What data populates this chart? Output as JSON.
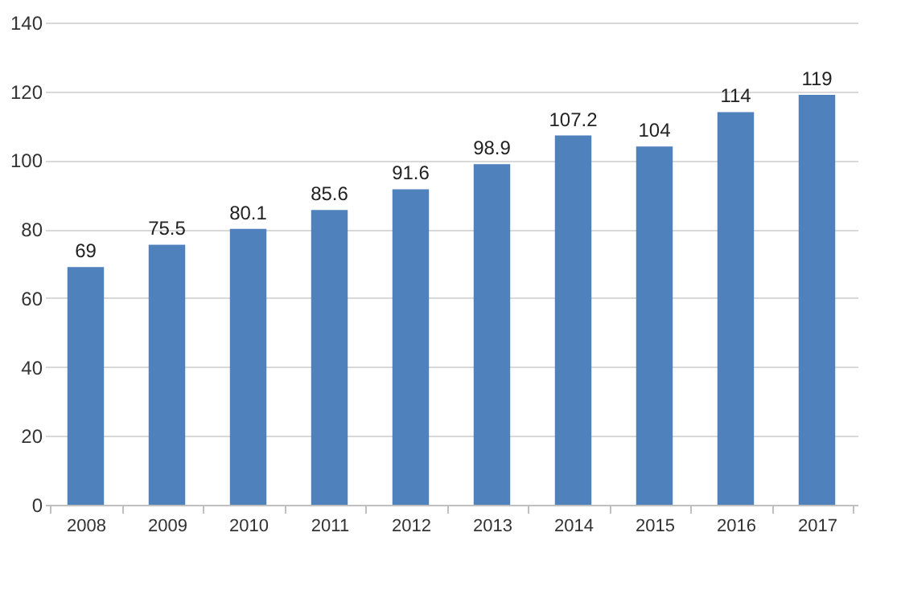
{
  "chart_data": {
    "type": "bar",
    "categories": [
      "2008",
      "2009",
      "2010",
      "2011",
      "2012",
      "2013",
      "2014",
      "2015",
      "2016",
      "2017"
    ],
    "values": [
      69,
      75.5,
      80.1,
      85.6,
      91.6,
      98.9,
      107.2,
      104,
      114,
      119
    ],
    "color": "#4f81bd",
    "ylim": [
      0,
      140
    ],
    "yticks": [
      0,
      20,
      40,
      60,
      80,
      100,
      120,
      140
    ],
    "grid": "y",
    "data_labels": true
  }
}
